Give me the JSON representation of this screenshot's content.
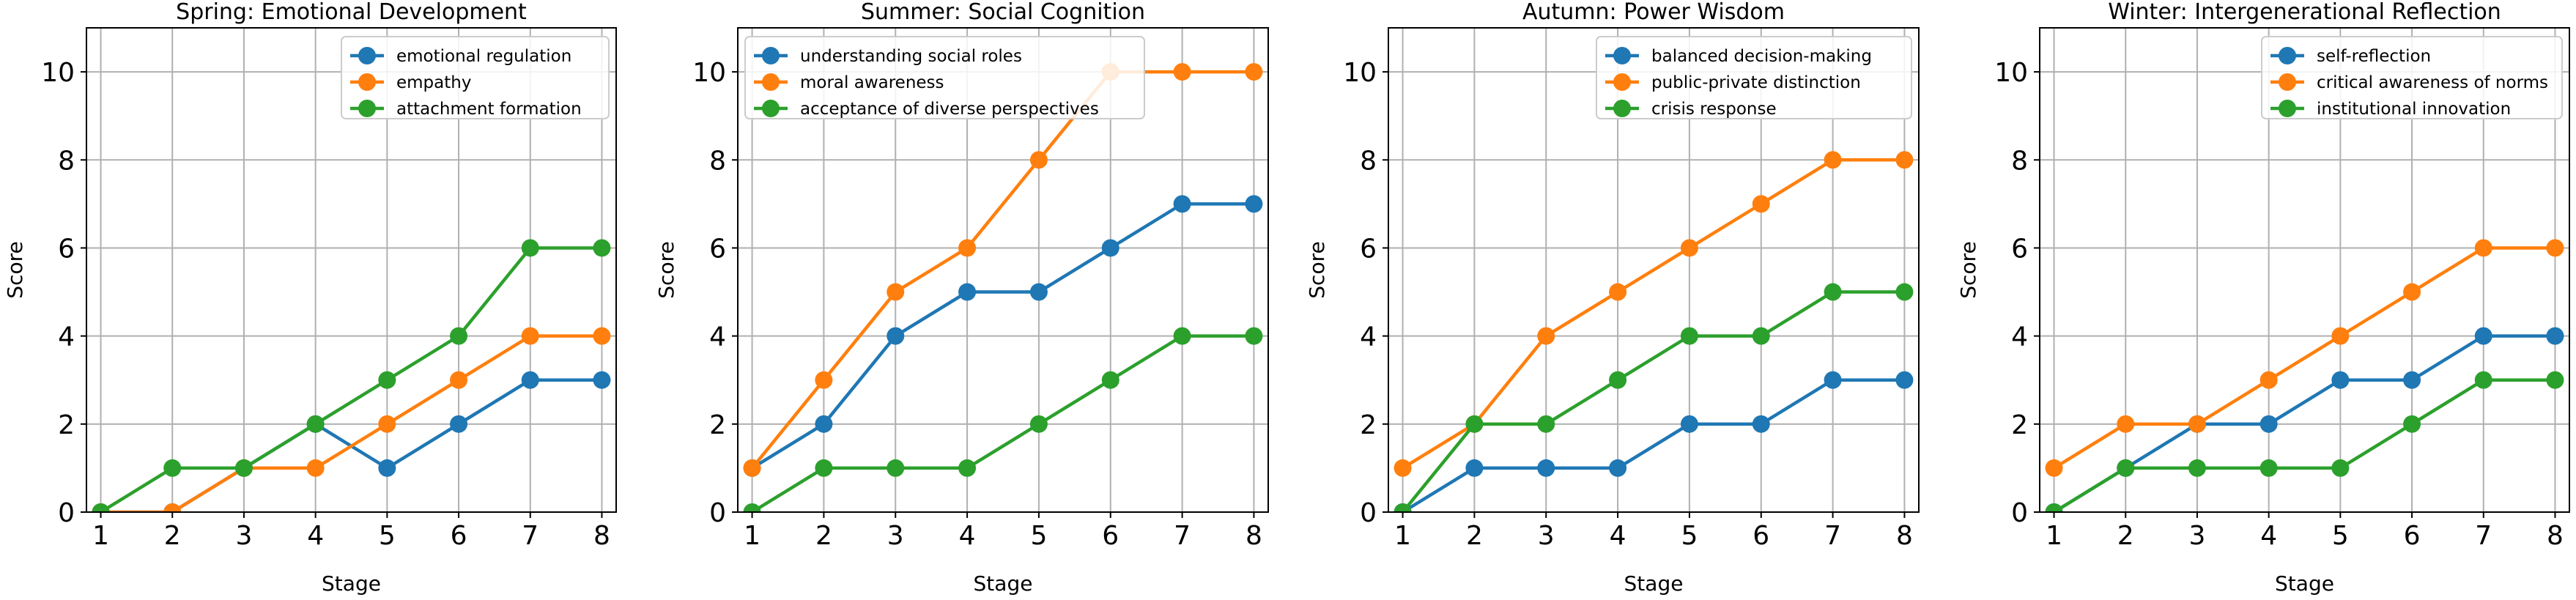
{
  "chart_data": [
    {
      "type": "line",
      "title": "Spring: Emotional Development",
      "xlabel": "Stage",
      "ylabel": "Score",
      "x": [
        1,
        2,
        3,
        4,
        5,
        6,
        7,
        8
      ],
      "xlim": [
        0.8,
        8.2
      ],
      "ylim": [
        0,
        11
      ],
      "yticks": [
        0,
        2,
        4,
        6,
        8,
        10
      ],
      "grid": true,
      "legend_position": "top-right",
      "series": [
        {
          "name": "emotional regulation",
          "color": "#1f77b4",
          "values": [
            0,
            0,
            1,
            2,
            1,
            2,
            3,
            3
          ]
        },
        {
          "name": "empathy",
          "color": "#ff7f0e",
          "values": [
            0,
            0,
            1,
            1,
            2,
            3,
            4,
            4
          ]
        },
        {
          "name": "attachment formation",
          "color": "#2ca02c",
          "values": [
            0,
            1,
            1,
            2,
            3,
            4,
            6,
            6
          ]
        }
      ]
    },
    {
      "type": "line",
      "title": "Summer: Social Cognition",
      "xlabel": "Stage",
      "ylabel": "Score",
      "x": [
        1,
        2,
        3,
        4,
        5,
        6,
        7,
        8
      ],
      "xlim": [
        0.8,
        8.2
      ],
      "ylim": [
        0,
        11
      ],
      "yticks": [
        0,
        2,
        4,
        6,
        8,
        10
      ],
      "grid": true,
      "legend_position": "top-left",
      "series": [
        {
          "name": "understanding social roles",
          "color": "#1f77b4",
          "values": [
            1,
            2,
            4,
            5,
            5,
            6,
            7,
            7
          ]
        },
        {
          "name": "moral awareness",
          "color": "#ff7f0e",
          "values": [
            1,
            3,
            5,
            6,
            8,
            10,
            10,
            10
          ]
        },
        {
          "name": "acceptance of diverse perspectives",
          "color": "#2ca02c",
          "values": [
            0,
            1,
            1,
            1,
            2,
            3,
            4,
            4
          ]
        }
      ]
    },
    {
      "type": "line",
      "title": "Autumn: Power Wisdom",
      "xlabel": "Stage",
      "ylabel": "Score",
      "x": [
        1,
        2,
        3,
        4,
        5,
        6,
        7,
        8
      ],
      "xlim": [
        0.8,
        8.2
      ],
      "ylim": [
        0,
        11
      ],
      "yticks": [
        0,
        2,
        4,
        6,
        8,
        10
      ],
      "grid": true,
      "legend_position": "top-right",
      "series": [
        {
          "name": "balanced decision-making",
          "color": "#1f77b4",
          "values": [
            0,
            1,
            1,
            1,
            2,
            2,
            3,
            3
          ]
        },
        {
          "name": "public-private distinction",
          "color": "#ff7f0e",
          "values": [
            1,
            2,
            4,
            5,
            6,
            7,
            8,
            8
          ]
        },
        {
          "name": "crisis response",
          "color": "#2ca02c",
          "values": [
            0,
            2,
            2,
            3,
            4,
            4,
            5,
            5
          ]
        }
      ]
    },
    {
      "type": "line",
      "title": "Winter: Intergenerational Reflection",
      "xlabel": "Stage",
      "ylabel": "Score",
      "x": [
        1,
        2,
        3,
        4,
        5,
        6,
        7,
        8
      ],
      "xlim": [
        0.8,
        8.2
      ],
      "ylim": [
        0,
        11
      ],
      "yticks": [
        0,
        2,
        4,
        6,
        8,
        10
      ],
      "grid": true,
      "legend_position": "top-right",
      "series": [
        {
          "name": "self-reflection",
          "color": "#1f77b4",
          "values": [
            0,
            1,
            2,
            2,
            3,
            3,
            4,
            4
          ]
        },
        {
          "name": "critical awareness of norms",
          "color": "#ff7f0e",
          "values": [
            1,
            2,
            2,
            3,
            4,
            5,
            6,
            6
          ]
        },
        {
          "name": "institutional innovation",
          "color": "#2ca02c",
          "values": [
            0,
            1,
            1,
            1,
            1,
            2,
            3,
            3
          ]
        }
      ]
    }
  ]
}
